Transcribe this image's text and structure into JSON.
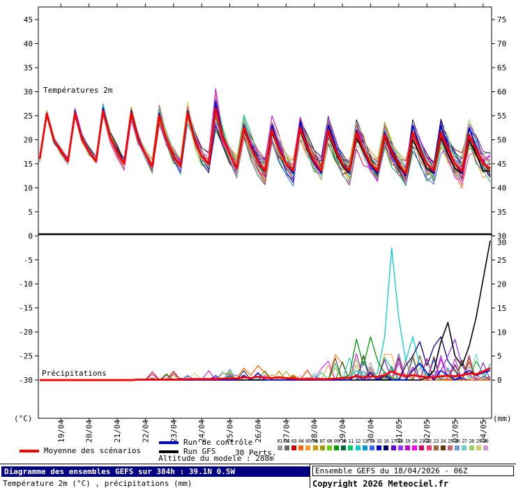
{
  "chart_data": {
    "type": "line",
    "panel_top_label": "Températures 2m",
    "panel_bottom_label": "Précipitations",
    "unit_left": "(°C)",
    "unit_right": "(mm)",
    "left_ticks": [
      45,
      40,
      35,
      30,
      25,
      20,
      15,
      10,
      5,
      0,
      -5,
      -10,
      -15,
      -20,
      -25,
      -30
    ],
    "right_ticks_top": [
      75,
      70,
      65,
      60,
      55,
      50,
      45,
      40,
      35,
      30
    ],
    "right_ticks_bottom": [
      30,
      25,
      20,
      15,
      10,
      5,
      0
    ],
    "x_ticks": [
      "19/04",
      "20/04",
      "21/04",
      "22/04",
      "23/04",
      "24/04",
      "25/04",
      "26/04",
      "27/04",
      "28/04",
      "29/04",
      "30/04",
      "01/05",
      "02/05",
      "03/05",
      "04/05"
    ],
    "hours_step": 6,
    "colors": {
      "mean": "#ff0000",
      "control": "#0000cc",
      "gfs": "#000000"
    },
    "mean_temp": [
      16,
      25.5,
      20,
      17.5,
      15.5,
      25.5,
      20,
      17.5,
      15.5,
      26,
      20.5,
      17.5,
      15,
      25.5,
      20,
      17,
      14.5,
      25,
      20,
      16.5,
      14.5,
      25.5,
      20,
      16.5,
      15,
      26.5,
      20.5,
      17,
      14,
      22.5,
      18.5,
      15.5,
      13.5,
      22,
      18,
      15,
      13.5,
      22.5,
      18.5,
      15.5,
      13.5,
      22,
      18,
      15,
      13.5,
      21.5,
      18,
      15,
      13.5,
      21,
      17.5,
      15,
      13,
      21.5,
      18,
      15,
      13.5,
      21.5,
      18,
      15,
      13.5,
      21,
      18,
      15,
      14
    ],
    "control_temp": [
      16,
      25.5,
      20,
      17.5,
      15.5,
      26,
      20,
      17.5,
      15.5,
      26.5,
      20.5,
      17.5,
      15,
      26,
      20.5,
      17,
      14.5,
      25.5,
      20,
      16.5,
      14.5,
      26,
      20.5,
      16.5,
      15,
      28,
      21,
      17,
      14,
      23,
      19,
      15.5,
      13.5,
      23,
      18.5,
      15,
      13,
      23.5,
      19,
      15,
      13,
      23,
      18.5,
      15,
      13,
      22,
      18,
      14.5,
      13,
      21.5,
      18,
      15,
      12.5,
      23,
      18.5,
      15,
      13,
      23,
      18.5,
      15,
      13,
      22.5,
      18.5,
      15,
      14
    ],
    "gfs_temp": [
      16,
      25.5,
      20,
      17.5,
      15.5,
      25.5,
      20,
      17.5,
      15.5,
      26,
      20.5,
      17.5,
      15,
      25.5,
      20,
      17,
      14.5,
      25,
      20,
      16.5,
      14.5,
      26,
      20.5,
      16.5,
      15,
      27.5,
      21,
      17,
      14,
      22,
      18.5,
      15.5,
      13.5,
      21.5,
      18,
      15,
      13.5,
      22,
      18,
      15,
      13.5,
      21.5,
      17.5,
      14.5,
      13,
      20.5,
      17.5,
      14.5,
      13,
      20.5,
      17,
      14.5,
      12.5,
      20,
      17,
      14,
      13,
      20.5,
      17,
      14,
      13,
      20,
      17,
      13.5,
      13.5
    ],
    "spread_temp": [
      1,
      1,
      1,
      1,
      1,
      1.2,
      1.2,
      1.2,
      1.2,
      1.5,
      1.5,
      1.5,
      1.5,
      1.8,
      1.8,
      1.8,
      2,
      2.2,
      2.2,
      2,
      2.2,
      2.5,
      2.5,
      2.2,
      2.5,
      5,
      3,
      2.5,
      2.8,
      3,
      3,
      2.8,
      2.8,
      3,
      3,
      2.8,
      3,
      3.2,
      3.2,
      3,
      3,
      3.5,
      3.2,
      3,
      3.2,
      3.5,
      3.2,
      3,
      3.2,
      3.8,
      3.5,
      3.2,
      3.5,
      4,
      3.8,
      3.5,
      3.5,
      4.5,
      4,
      3.5,
      3.8,
      4.5,
      4,
      3.8,
      4
    ],
    "mean_precip": [
      0,
      0,
      0,
      0,
      0,
      0,
      0,
      0,
      0,
      0,
      0,
      0,
      0,
      0,
      0.1,
      0.1,
      0.1,
      0.1,
      0.1,
      0.1,
      0.1,
      0.2,
      0.2,
      0.2,
      0.2,
      0.2,
      0.3,
      0.3,
      0.3,
      0.6,
      0.4,
      0.7,
      0.5,
      0.4,
      0.6,
      0.4,
      0.3,
      0.2,
      0.2,
      0.2,
      0.2,
      0.2,
      0.3,
      0.4,
      0.5,
      0.8,
      0.6,
      0.8,
      0.7,
      1,
      1.8,
      1.2,
      0.8,
      1,
      0.8,
      0.6,
      0.6,
      0.8,
      0.9,
      0.8,
      1,
      1.4,
      1.2,
      1.8,
      2.5
    ],
    "control_precip": [
      [
        29,
        1
      ],
      [
        31,
        1.5
      ],
      [
        45,
        1
      ],
      [
        47,
        1.5
      ],
      [
        49,
        1
      ],
      [
        53,
        2
      ],
      [
        54,
        3.5
      ],
      [
        55,
        1.5
      ],
      [
        57,
        2
      ],
      [
        58,
        1
      ],
      [
        60,
        1
      ],
      [
        61,
        2
      ],
      [
        62,
        1
      ],
      [
        63,
        1.5
      ],
      [
        64,
        2
      ]
    ],
    "gfs_precip": [
      [
        55,
        0.5
      ],
      [
        56,
        2
      ],
      [
        57,
        8
      ],
      [
        58,
        12
      ],
      [
        59,
        5
      ],
      [
        60,
        3
      ],
      [
        61,
        7
      ],
      [
        62,
        13
      ],
      [
        63,
        21
      ],
      [
        64,
        29
      ]
    ],
    "precip_highlights": [
      {
        "name": "member-cyan",
        "color": "#00cccc",
        "points": [
          [
            44,
            0.5
          ],
          [
            45,
            2
          ],
          [
            46,
            1
          ],
          [
            47,
            0.5
          ],
          [
            48,
            1.5
          ],
          [
            49,
            9
          ],
          [
            50,
            27.5
          ],
          [
            51,
            13
          ],
          [
            52,
            4
          ],
          [
            53,
            9
          ],
          [
            54,
            3
          ],
          [
            55,
            1
          ],
          [
            56,
            0.5
          ]
        ]
      },
      {
        "name": "member-green",
        "color": "#009900",
        "points": [
          [
            43,
            0.5
          ],
          [
            44,
            1
          ],
          [
            45,
            8.5
          ],
          [
            46,
            3
          ],
          [
            47,
            9
          ],
          [
            48,
            4
          ],
          [
            49,
            1.5
          ],
          [
            50,
            0.5
          ]
        ]
      },
      {
        "name": "member-navy",
        "color": "#000080",
        "points": [
          [
            52,
            3
          ],
          [
            53,
            5
          ],
          [
            54,
            8
          ],
          [
            55,
            3
          ],
          [
            56,
            7
          ],
          [
            57,
            9
          ],
          [
            58,
            4
          ],
          [
            59,
            2
          ]
        ]
      },
      {
        "name": "member-violet",
        "color": "#9933ff",
        "points": [
          [
            56,
            1
          ],
          [
            57,
            2
          ],
          [
            58,
            5
          ],
          [
            59,
            8.5
          ],
          [
            60,
            3
          ],
          [
            61,
            1
          ]
        ]
      },
      {
        "name": "member-orange",
        "color": "#ff6600",
        "points": [
          [
            28,
            0.5
          ],
          [
            29,
            2.5
          ],
          [
            30,
            1
          ],
          [
            31,
            3
          ],
          [
            32,
            1.5
          ],
          [
            36,
            1
          ],
          [
            38,
            2
          ]
        ]
      }
    ],
    "member_colors": [
      "#999999",
      "#666666",
      "#cc0000",
      "#ff6600",
      "#ff9933",
      "#cc9900",
      "#999900",
      "#66cc00",
      "#009900",
      "#006633",
      "#00cc66",
      "#00cccc",
      "#0099cc",
      "#3366ff",
      "#0000cc",
      "#000066",
      "#6600cc",
      "#9933ff",
      "#cc00cc",
      "#ff00ff",
      "#cc0066",
      "#ff3366",
      "#996633",
      "#663300",
      "#cc6666",
      "#6699cc",
      "#66cccc",
      "#99cc66",
      "#cccc66",
      "#cc99cc"
    ]
  },
  "legend": {
    "mean": "Moyenne des scénarios",
    "control": "Run de contrôle",
    "gfs": "Run GFS",
    "perts": "30 Perts.",
    "members": [
      "01",
      "02",
      "03",
      "04",
      "05",
      "06",
      "07",
      "08",
      "09",
      "10",
      "11",
      "12",
      "13",
      "14",
      "15",
      "16",
      "17",
      "18",
      "19",
      "20",
      "21",
      "22",
      "23",
      "24",
      "25",
      "26",
      "27",
      "28",
      "29",
      "30"
    ]
  },
  "footer": {
    "altitude": "Altitude du modele : 288m",
    "title": "Diagramme des ensembles GEFS sur 384h : 39.1N 0.5W",
    "subtitle": "Température 2m (°C) , précipitations (mm)",
    "run": "Ensemble GEFS du 18/04/2026 - 06Z",
    "copyright": "Copyright 2026 Meteociel.fr"
  }
}
